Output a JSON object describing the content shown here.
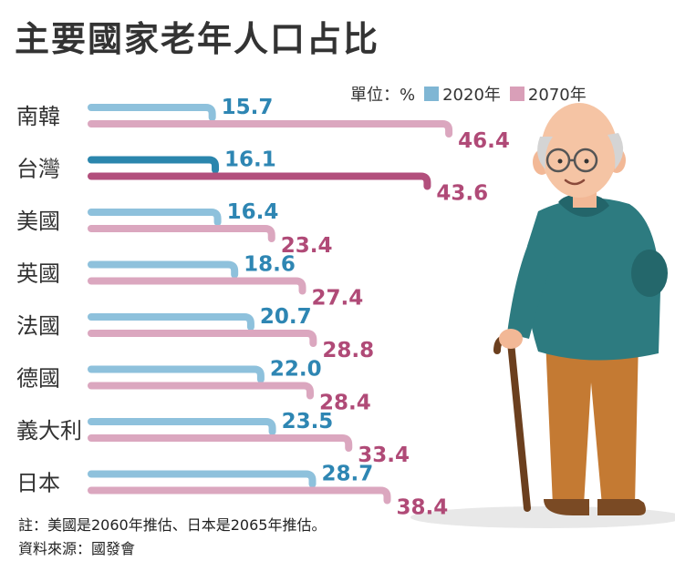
{
  "title": "主要國家老年人口占比",
  "legend": {
    "unit": "單位：%",
    "items": [
      {
        "label": "2020年",
        "color": "#7fb6d4"
      },
      {
        "label": "2070年",
        "color": "#d99fb8"
      }
    ]
  },
  "colors": {
    "bar2020": "#8ec1dc",
    "bar2070": "#dba7bf",
    "bar2020_highlight": "#2b86ad",
    "bar2070_highlight": "#b24f7c",
    "label2020": "#2e86b3",
    "label2070": "#b04a77"
  },
  "chart_data": {
    "type": "bar",
    "orientation": "horizontal",
    "title": "主要國家老年人口占比",
    "unit": "%",
    "categories": [
      "南韓",
      "台灣",
      "美國",
      "英國",
      "法國",
      "德國",
      "義大利",
      "日本"
    ],
    "highlight": "台灣",
    "series": [
      {
        "name": "2020年",
        "values": [
          15.7,
          16.1,
          16.4,
          18.6,
          20.7,
          22.0,
          23.5,
          28.7
        ]
      },
      {
        "name": "2070年",
        "values": [
          46.4,
          43.6,
          23.4,
          27.4,
          28.8,
          28.4,
          33.4,
          38.4
        ]
      }
    ],
    "value_labels": [
      [
        "15.7",
        "16.1",
        "16.4",
        "18.6",
        "20.7",
        "22.0",
        "23.5",
        "28.7"
      ],
      [
        "46.4",
        "43.6",
        "23.4",
        "27.4",
        "28.8",
        "28.4",
        "33.4",
        "38.4"
      ]
    ]
  },
  "notes": {
    "line1": "註：美國是2060年推估、日本是2065年推估。",
    "line2": "資料來源：國發會"
  }
}
